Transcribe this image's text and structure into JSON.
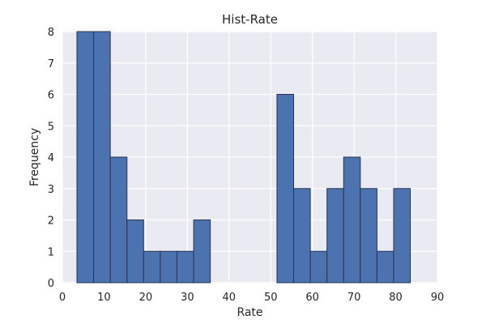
{
  "chart_data": {
    "type": "bar",
    "subtype": "histogram",
    "title": "Hist-Rate",
    "xlabel": "Rate",
    "ylabel": "Frequency",
    "xlim": [
      0,
      90
    ],
    "ylim": [
      0,
      8
    ],
    "xticks": [
      0,
      10,
      20,
      30,
      40,
      50,
      60,
      70,
      80,
      90
    ],
    "yticks": [
      0,
      1,
      2,
      3,
      4,
      5,
      6,
      7,
      8
    ],
    "grid": true,
    "bar_color": "#4c72b0",
    "background_color": "#eaeaf2",
    "bins": [
      {
        "x0": 3.5,
        "x1": 7.5,
        "value": 8
      },
      {
        "x0": 7.5,
        "x1": 11.5,
        "value": 8
      },
      {
        "x0": 11.5,
        "x1": 15.5,
        "value": 4
      },
      {
        "x0": 15.5,
        "x1": 19.5,
        "value": 2
      },
      {
        "x0": 19.5,
        "x1": 23.5,
        "value": 1
      },
      {
        "x0": 23.5,
        "x1": 27.5,
        "value": 1
      },
      {
        "x0": 27.5,
        "x1": 31.5,
        "value": 1
      },
      {
        "x0": 31.5,
        "x1": 35.5,
        "value": 2
      },
      {
        "x0": 35.5,
        "x1": 39.5,
        "value": 0
      },
      {
        "x0": 39.5,
        "x1": 43.5,
        "value": 0
      },
      {
        "x0": 43.5,
        "x1": 47.5,
        "value": 0
      },
      {
        "x0": 47.5,
        "x1": 51.5,
        "value": 0
      },
      {
        "x0": 51.5,
        "x1": 55.5,
        "value": 6
      },
      {
        "x0": 55.5,
        "x1": 59.5,
        "value": 3
      },
      {
        "x0": 59.5,
        "x1": 63.5,
        "value": 1
      },
      {
        "x0": 63.5,
        "x1": 67.5,
        "value": 3
      },
      {
        "x0": 67.5,
        "x1": 71.5,
        "value": 4
      },
      {
        "x0": 71.5,
        "x1": 75.5,
        "value": 3
      },
      {
        "x0": 75.5,
        "x1": 79.5,
        "value": 1
      },
      {
        "x0": 79.5,
        "x1": 83.5,
        "value": 3
      }
    ]
  }
}
